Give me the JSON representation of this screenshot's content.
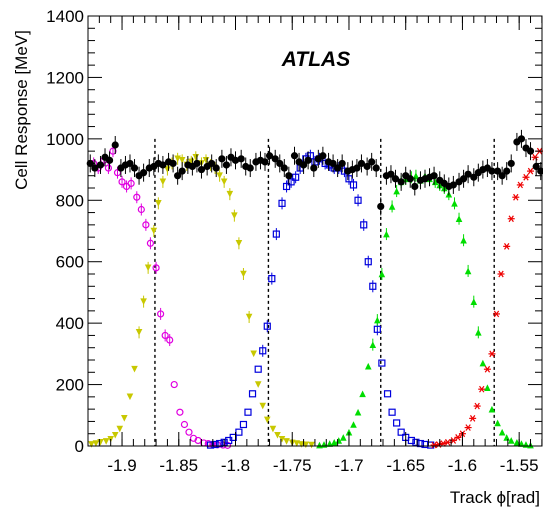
{
  "chart_data": {
    "type": "scatter",
    "label": "ATLAS",
    "xlabel": "Track ϕ[rad]",
    "ylabel": "Cell Response [MeV]",
    "xlim": [
      -1.93,
      -1.529
    ],
    "ylim": [
      0,
      1400
    ],
    "x_ticks": [
      "-1.9",
      "-1.85",
      "-1.8",
      "-1.75",
      "-1.7",
      "-1.65",
      "-1.6",
      "-1.55"
    ],
    "y_ticks": [
      "0",
      "200",
      "400",
      "600",
      "800",
      "1000",
      "1200",
      "1400"
    ],
    "cell_boundaries": [
      -1.871,
      -1.771,
      -1.672,
      -1.572
    ],
    "series": [
      {
        "color": "#000000",
        "marker": "filled-circle",
        "points": [
          [
            -1.928,
            920
          ],
          [
            -1.924,
            905
          ],
          [
            -1.919,
            915
          ],
          [
            -1.915,
            940
          ],
          [
            -1.911,
            930
          ],
          [
            -1.906,
            980
          ],
          [
            -1.901,
            905
          ],
          [
            -1.897,
            915
          ],
          [
            -1.893,
            920
          ],
          [
            -1.889,
            905
          ],
          [
            -1.885,
            880
          ],
          [
            -1.881,
            890
          ],
          [
            -1.876,
            905
          ],
          [
            -1.872,
            910
          ],
          [
            -1.868,
            920
          ],
          [
            -1.864,
            915
          ],
          [
            -1.859,
            925
          ],
          [
            -1.855,
            920
          ],
          [
            -1.851,
            880
          ],
          [
            -1.847,
            895
          ],
          [
            -1.842,
            915
          ],
          [
            -1.838,
            910
          ],
          [
            -1.834,
            920
          ],
          [
            -1.83,
            900
          ],
          [
            -1.825,
            910
          ],
          [
            -1.821,
            920
          ],
          [
            -1.817,
            905
          ],
          [
            -1.812,
            935
          ],
          [
            -1.808,
            915
          ],
          [
            -1.804,
            940
          ],
          [
            -1.8,
            930
          ],
          [
            -1.795,
            935
          ],
          [
            -1.791,
            910
          ],
          [
            -1.787,
            905
          ],
          [
            -1.782,
            925
          ],
          [
            -1.778,
            930
          ],
          [
            -1.774,
            925
          ],
          [
            -1.77,
            945
          ],
          [
            -1.765,
            935
          ],
          [
            -1.761,
            920
          ],
          [
            -1.757,
            905
          ],
          [
            -1.753,
            880
          ],
          [
            -1.748,
            945
          ],
          [
            -1.744,
            925
          ],
          [
            -1.74,
            915
          ],
          [
            -1.736,
            930
          ],
          [
            -1.731,
            905
          ],
          [
            -1.727,
            935
          ],
          [
            -1.723,
            945
          ],
          [
            -1.718,
            925
          ],
          [
            -1.714,
            920
          ],
          [
            -1.71,
            905
          ],
          [
            -1.706,
            920
          ],
          [
            -1.701,
            895
          ],
          [
            -1.697,
            900
          ],
          [
            -1.693,
            905
          ],
          [
            -1.689,
            920
          ],
          [
            -1.684,
            910
          ],
          [
            -1.68,
            925
          ],
          [
            -1.676,
            905
          ],
          [
            -1.672,
            780
          ],
          [
            -1.667,
            880
          ],
          [
            -1.663,
            885
          ],
          [
            -1.659,
            870
          ],
          [
            -1.654,
            860
          ],
          [
            -1.65,
            880
          ],
          [
            -1.646,
            870
          ],
          [
            -1.642,
            845
          ],
          [
            -1.637,
            865
          ],
          [
            -1.633,
            870
          ],
          [
            -1.629,
            875
          ],
          [
            -1.625,
            880
          ],
          [
            -1.62,
            865
          ],
          [
            -1.616,
            855
          ],
          [
            -1.612,
            845
          ],
          [
            -1.608,
            850
          ],
          [
            -1.603,
            860
          ],
          [
            -1.599,
            870
          ],
          [
            -1.595,
            885
          ],
          [
            -1.59,
            875
          ],
          [
            -1.586,
            890
          ],
          [
            -1.582,
            900
          ],
          [
            -1.578,
            905
          ],
          [
            -1.574,
            895
          ],
          [
            -1.569,
            895
          ],
          [
            -1.565,
            880
          ],
          [
            -1.561,
            895
          ],
          [
            -1.557,
            920
          ],
          [
            -1.552,
            990
          ],
          [
            -1.548,
            1000
          ],
          [
            -1.544,
            970
          ],
          [
            -1.54,
            960
          ],
          [
            -1.535,
            910
          ],
          [
            -1.531,
            895
          ]
        ]
      },
      {
        "color": "#e000e0",
        "marker": "open-circle",
        "points": [
          [
            -1.925,
            920
          ],
          [
            -1.921,
            905
          ],
          [
            -1.916,
            930
          ],
          [
            -1.912,
            905
          ],
          [
            -1.908,
            960
          ],
          [
            -1.904,
            890
          ],
          [
            -1.9,
            860
          ],
          [
            -1.896,
            845
          ],
          [
            -1.892,
            855
          ],
          [
            -1.887,
            810
          ],
          [
            -1.883,
            770
          ],
          [
            -1.879,
            720
          ],
          [
            -1.875,
            660
          ],
          [
            -1.87,
            580
          ],
          [
            -1.866,
            430
          ],
          [
            -1.862,
            360
          ],
          [
            -1.858,
            345
          ],
          [
            -1.854,
            200
          ],
          [
            -1.849,
            110
          ],
          [
            -1.845,
            70
          ],
          [
            -1.841,
            45
          ],
          [
            -1.837,
            25
          ],
          [
            -1.833,
            18
          ],
          [
            -1.828,
            10
          ],
          [
            -1.824,
            8
          ],
          [
            -1.82,
            5
          ],
          [
            -1.816,
            4
          ],
          [
            -1.811,
            3
          ],
          [
            -1.807,
            2
          ]
        ]
      },
      {
        "color": "#c8c800",
        "marker": "filled-triangle-down",
        "points": [
          [
            -1.927,
            5
          ],
          [
            -1.923,
            8
          ],
          [
            -1.919,
            12
          ],
          [
            -1.914,
            15
          ],
          [
            -1.91,
            22
          ],
          [
            -1.906,
            35
          ],
          [
            -1.902,
            55
          ],
          [
            -1.898,
            90
          ],
          [
            -1.893,
            160
          ],
          [
            -1.889,
            250
          ],
          [
            -1.885,
            370
          ],
          [
            -1.881,
            470
          ],
          [
            -1.877,
            580
          ],
          [
            -1.872,
            700
          ],
          [
            -1.868,
            790
          ],
          [
            -1.864,
            860
          ],
          [
            -1.86,
            900
          ],
          [
            -1.856,
            920
          ],
          [
            -1.851,
            935
          ],
          [
            -1.847,
            930
          ],
          [
            -1.843,
            915
          ],
          [
            -1.839,
            925
          ],
          [
            -1.835,
            940
          ],
          [
            -1.83,
            920
          ],
          [
            -1.826,
            930
          ],
          [
            -1.822,
            915
          ],
          [
            -1.818,
            905
          ],
          [
            -1.814,
            880
          ],
          [
            -1.81,
            860
          ],
          [
            -1.805,
            820
          ],
          [
            -1.801,
            750
          ],
          [
            -1.797,
            660
          ],
          [
            -1.793,
            560
          ],
          [
            -1.788,
            420
          ],
          [
            -1.784,
            300
          ],
          [
            -1.78,
            200
          ],
          [
            -1.776,
            130
          ],
          [
            -1.772,
            85
          ],
          [
            -1.767,
            55
          ],
          [
            -1.763,
            35
          ],
          [
            -1.759,
            22
          ],
          [
            -1.755,
            15
          ],
          [
            -1.75,
            10
          ],
          [
            -1.746,
            8
          ],
          [
            -1.742,
            5
          ],
          [
            -1.738,
            4
          ],
          [
            -1.733,
            3
          ]
        ]
      },
      {
        "color": "#0000dd",
        "marker": "open-square",
        "points": [
          [
            -1.822,
            3
          ],
          [
            -1.818,
            5
          ],
          [
            -1.814,
            8
          ],
          [
            -1.81,
            12
          ],
          [
            -1.806,
            18
          ],
          [
            -1.802,
            28
          ],
          [
            -1.797,
            45
          ],
          [
            -1.793,
            70
          ],
          [
            -1.789,
            110
          ],
          [
            -1.785,
            170
          ],
          [
            -1.78,
            250
          ],
          [
            -1.776,
            310
          ],
          [
            -1.772,
            390
          ],
          [
            -1.768,
            545
          ],
          [
            -1.764,
            690
          ],
          [
            -1.759,
            790
          ],
          [
            -1.755,
            845
          ],
          [
            -1.751,
            860
          ],
          [
            -1.747,
            875
          ],
          [
            -1.743,
            905
          ],
          [
            -1.738,
            935
          ],
          [
            -1.734,
            945
          ],
          [
            -1.73,
            925
          ],
          [
            -1.726,
            935
          ],
          [
            -1.721,
            920
          ],
          [
            -1.717,
            915
          ],
          [
            -1.713,
            905
          ],
          [
            -1.709,
            905
          ],
          [
            -1.704,
            895
          ],
          [
            -1.7,
            870
          ],
          [
            -1.696,
            850
          ],
          [
            -1.692,
            800
          ],
          [
            -1.687,
            720
          ],
          [
            -1.683,
            600
          ],
          [
            -1.679,
            520
          ],
          [
            -1.675,
            380
          ],
          [
            -1.671,
            270
          ],
          [
            -1.666,
            170
          ],
          [
            -1.662,
            110
          ],
          [
            -1.658,
            75
          ],
          [
            -1.654,
            45
          ],
          [
            -1.65,
            28
          ],
          [
            -1.645,
            18
          ],
          [
            -1.641,
            12
          ],
          [
            -1.637,
            8
          ],
          [
            -1.633,
            5
          ],
          [
            -1.628,
            3
          ]
        ]
      },
      {
        "color": "#00dd00",
        "marker": "filled-triangle-up",
        "points": [
          [
            -1.726,
            3
          ],
          [
            -1.722,
            5
          ],
          [
            -1.717,
            8
          ],
          [
            -1.713,
            12
          ],
          [
            -1.709,
            18
          ],
          [
            -1.705,
            28
          ],
          [
            -1.7,
            45
          ],
          [
            -1.696,
            70
          ],
          [
            -1.692,
            110
          ],
          [
            -1.688,
            170
          ],
          [
            -1.683,
            260
          ],
          [
            -1.679,
            330
          ],
          [
            -1.675,
            410
          ],
          [
            -1.671,
            560
          ],
          [
            -1.667,
            690
          ],
          [
            -1.662,
            780
          ],
          [
            -1.658,
            830
          ],
          [
            -1.654,
            860
          ],
          [
            -1.65,
            870
          ],
          [
            -1.645,
            875
          ],
          [
            -1.641,
            880
          ],
          [
            -1.637,
            865
          ],
          [
            -1.633,
            880
          ],
          [
            -1.629,
            870
          ],
          [
            -1.624,
            860
          ],
          [
            -1.62,
            850
          ],
          [
            -1.616,
            840
          ],
          [
            -1.612,
            820
          ],
          [
            -1.607,
            790
          ],
          [
            -1.603,
            740
          ],
          [
            -1.599,
            670
          ],
          [
            -1.595,
            570
          ],
          [
            -1.59,
            470
          ],
          [
            -1.586,
            370
          ],
          [
            -1.582,
            270
          ],
          [
            -1.578,
            190
          ],
          [
            -1.574,
            120
          ],
          [
            -1.569,
            75
          ],
          [
            -1.565,
            45
          ],
          [
            -1.561,
            28
          ],
          [
            -1.557,
            18
          ],
          [
            -1.552,
            12
          ],
          [
            -1.548,
            8
          ],
          [
            -1.544,
            5
          ],
          [
            -1.54,
            3
          ]
        ]
      },
      {
        "color": "#ee0000",
        "marker": "asterisk",
        "points": [
          [
            -1.625,
            3
          ],
          [
            -1.621,
            5
          ],
          [
            -1.617,
            8
          ],
          [
            -1.613,
            12
          ],
          [
            -1.608,
            18
          ],
          [
            -1.604,
            28
          ],
          [
            -1.6,
            40
          ],
          [
            -1.595,
            60
          ],
          [
            -1.591,
            90
          ],
          [
            -1.587,
            130
          ],
          [
            -1.583,
            185
          ],
          [
            -1.578,
            250
          ],
          [
            -1.574,
            300
          ],
          [
            -1.57,
            430
          ],
          [
            -1.566,
            560
          ],
          [
            -1.561,
            650
          ],
          [
            -1.557,
            740
          ],
          [
            -1.553,
            810
          ],
          [
            -1.549,
            850
          ],
          [
            -1.544,
            875
          ],
          [
            -1.54,
            895
          ],
          [
            -1.536,
            940
          ],
          [
            -1.532,
            960
          ]
        ]
      }
    ]
  }
}
